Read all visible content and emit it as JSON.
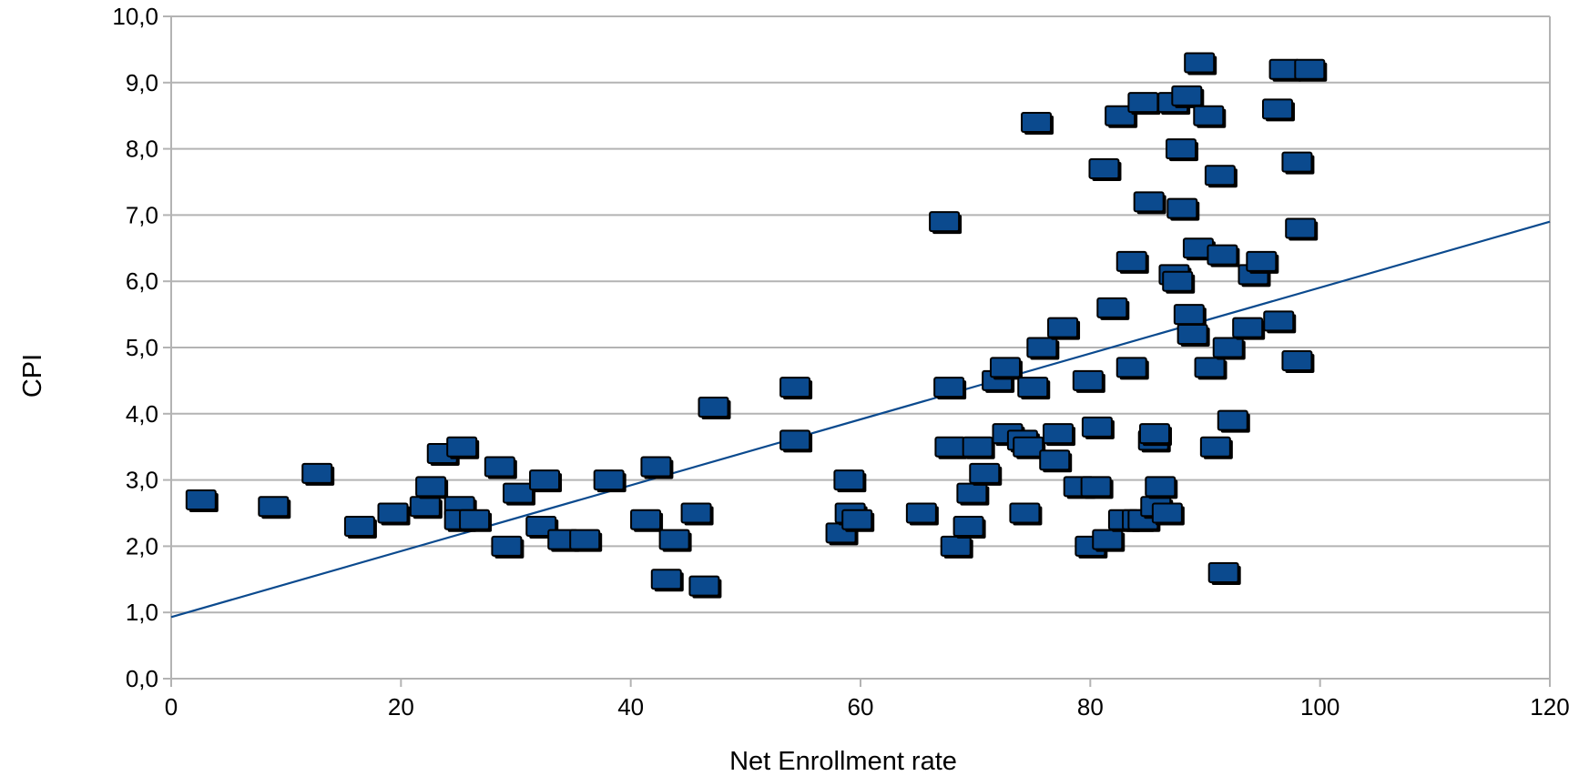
{
  "chart_data": {
    "type": "scatter",
    "title": "",
    "xlabel": "Net Enrollment rate",
    "ylabel": "CPI",
    "xlim": [
      0,
      120
    ],
    "ylim": [
      0,
      10
    ],
    "x_ticks": [
      0,
      20,
      40,
      60,
      80,
      100,
      120
    ],
    "x_tick_labels": [
      "0",
      "20",
      "40",
      "60",
      "80",
      "100",
      "120"
    ],
    "y_ticks": [
      0,
      1,
      2,
      3,
      4,
      5,
      6,
      7,
      8,
      9,
      10
    ],
    "y_tick_labels": [
      "0,0",
      "1,0",
      "2,0",
      "3,0",
      "4,0",
      "5,0",
      "6,0",
      "7,0",
      "8,0",
      "9,0",
      "10,0"
    ],
    "grid": "horizontal",
    "legend": "none",
    "marker": "square",
    "colors": {
      "marker": "#0b4a8e",
      "trendline": "#0b4a8e",
      "grid": "#b3b3b3"
    },
    "trendline": {
      "type": "linear",
      "x": [
        0,
        120
      ],
      "y": [
        0.93,
        6.9
      ]
    },
    "series": [
      {
        "points": [
          [
            2.6,
            2.7
          ],
          [
            8.9,
            2.6
          ],
          [
            12.7,
            3.1
          ],
          [
            16.4,
            2.3
          ],
          [
            19.3,
            2.5
          ],
          [
            22.1,
            2.6
          ],
          [
            22.6,
            2.9
          ],
          [
            23.6,
            3.4
          ],
          [
            25.1,
            2.6
          ],
          [
            25.3,
            3.5
          ],
          [
            25.1,
            2.4
          ],
          [
            26.4,
            2.4
          ],
          [
            28.6,
            3.2
          ],
          [
            29.2,
            2.0
          ],
          [
            30.2,
            2.8
          ],
          [
            32.2,
            2.3
          ],
          [
            32.5,
            3.0
          ],
          [
            34.1,
            2.1
          ],
          [
            36.0,
            2.1
          ],
          [
            38.1,
            3.0
          ],
          [
            41.3,
            2.4
          ],
          [
            42.2,
            3.2
          ],
          [
            43.1,
            1.5
          ],
          [
            43.8,
            2.1
          ],
          [
            45.7,
            2.5
          ],
          [
            46.4,
            1.4
          ],
          [
            47.2,
            4.1
          ],
          [
            54.3,
            4.4
          ],
          [
            54.3,
            3.6
          ],
          [
            58.3,
            2.2
          ],
          [
            59.0,
            3.0
          ],
          [
            59.1,
            2.5
          ],
          [
            59.7,
            2.4
          ],
          [
            65.3,
            2.5
          ],
          [
            67.3,
            6.9
          ],
          [
            67.7,
            4.4
          ],
          [
            67.8,
            3.5
          ],
          [
            68.3,
            2.0
          ],
          [
            69.4,
            2.3
          ],
          [
            69.7,
            2.8
          ],
          [
            70.2,
            3.5
          ],
          [
            70.8,
            3.1
          ],
          [
            71.9,
            4.5
          ],
          [
            72.6,
            4.7
          ],
          [
            72.8,
            3.7
          ],
          [
            74.1,
            3.6
          ],
          [
            74.3,
            2.5
          ],
          [
            74.6,
            3.5
          ],
          [
            75.0,
            4.4
          ],
          [
            75.3,
            8.4
          ],
          [
            75.8,
            5.0
          ],
          [
            76.9,
            3.3
          ],
          [
            77.2,
            3.7
          ],
          [
            77.6,
            5.3
          ],
          [
            79.0,
            2.9
          ],
          [
            79.8,
            4.5
          ],
          [
            80.0,
            2.0
          ],
          [
            80.5,
            2.9
          ],
          [
            80.6,
            3.8
          ],
          [
            81.2,
            7.7
          ],
          [
            81.5,
            2.1
          ],
          [
            81.9,
            5.6
          ],
          [
            82.6,
            8.5
          ],
          [
            82.9,
            2.4
          ],
          [
            83.6,
            6.3
          ],
          [
            83.6,
            4.7
          ],
          [
            84.1,
            2.4
          ],
          [
            84.6,
            8.7
          ],
          [
            84.6,
            2.4
          ],
          [
            85.1,
            7.2
          ],
          [
            85.5,
            3.6
          ],
          [
            85.6,
            3.7
          ],
          [
            85.7,
            2.6
          ],
          [
            86.1,
            2.9
          ],
          [
            86.7,
            2.5
          ],
          [
            87.2,
            8.7
          ],
          [
            87.3,
            6.1
          ],
          [
            87.6,
            6.0
          ],
          [
            87.9,
            8.0
          ],
          [
            88.0,
            7.1
          ],
          [
            88.4,
            8.8
          ],
          [
            88.6,
            5.5
          ],
          [
            88.9,
            5.2
          ],
          [
            89.4,
            6.5
          ],
          [
            89.5,
            9.3
          ],
          [
            90.3,
            8.5
          ],
          [
            90.4,
            4.7
          ],
          [
            90.9,
            3.5
          ],
          [
            91.3,
            7.6
          ],
          [
            91.5,
            6.4
          ],
          [
            91.6,
            1.6
          ],
          [
            92.0,
            5.0
          ],
          [
            92.4,
            3.9
          ],
          [
            93.7,
            5.3
          ],
          [
            94.2,
            6.1
          ],
          [
            94.9,
            6.3
          ],
          [
            96.3,
            8.6
          ],
          [
            96.4,
            5.4
          ],
          [
            96.9,
            9.2
          ],
          [
            98.0,
            4.8
          ],
          [
            98.0,
            7.8
          ],
          [
            98.3,
            6.8
          ],
          [
            99.1,
            9.2
          ]
        ]
      }
    ]
  }
}
